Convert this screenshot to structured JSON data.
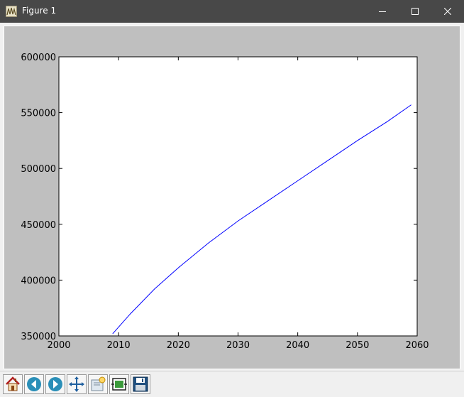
{
  "window": {
    "title": "Figure 1",
    "minimize_icon": "minimize-icon",
    "maximize_icon": "maximize-icon",
    "close_icon": "close-icon"
  },
  "toolbar": {
    "tools": [
      {
        "name": "home",
        "icon": "home-icon"
      },
      {
        "name": "back",
        "icon": "back-arrow-icon"
      },
      {
        "name": "forward",
        "icon": "forward-arrow-icon"
      },
      {
        "name": "pan",
        "icon": "pan-icon"
      },
      {
        "name": "zoom",
        "icon": "zoom-icon"
      },
      {
        "name": "subplots",
        "icon": "subplots-icon"
      },
      {
        "name": "save",
        "icon": "save-icon"
      }
    ]
  },
  "colors": {
    "line": "#0000ff",
    "canvas_bg": "#bfbfbf",
    "axes_bg": "#ffffff",
    "titlebar": "#484848"
  },
  "chart_data": {
    "type": "line",
    "title": "",
    "xlabel": "",
    "ylabel": "",
    "xlim": [
      2000,
      2060
    ],
    "ylim": [
      350000,
      600000
    ],
    "xticks": [
      2000,
      2010,
      2020,
      2030,
      2040,
      2050,
      2060
    ],
    "yticks": [
      350000,
      400000,
      450000,
      500000,
      550000,
      600000
    ],
    "grid": false,
    "series": [
      {
        "x": [
          2009,
          2012,
          2016,
          2020,
          2025,
          2030,
          2035,
          2040,
          2045,
          2050,
          2055,
          2059
        ],
        "y": [
          352000,
          370000,
          392000,
          411000,
          433000,
          453000,
          471000,
          489000,
          507000,
          525000,
          542000,
          557000
        ]
      }
    ]
  }
}
